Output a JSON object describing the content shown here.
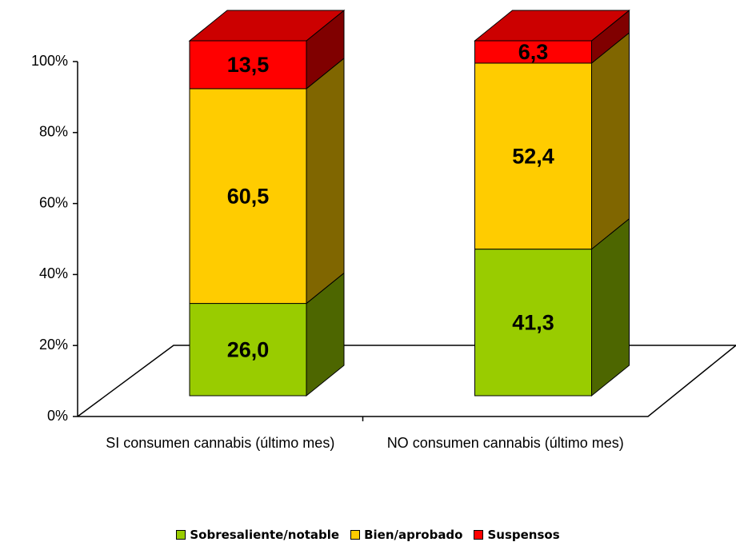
{
  "chart_data": {
    "type": "bar3d-stacked",
    "categories": [
      "SI consumen cannabis (último mes)",
      "NO consumen cannabis (último mes)"
    ],
    "series": [
      {
        "name": "Sobresaliente/notable",
        "color": "#99cc00",
        "values": [
          26.0,
          41.3
        ],
        "value_labels": [
          "26,0",
          "41,3"
        ]
      },
      {
        "name": "Bien/aprobado",
        "color": "#ffcc00",
        "values": [
          60.5,
          52.4
        ],
        "value_labels": [
          "60,5",
          "52,4"
        ]
      },
      {
        "name": "Suspensos",
        "color": "#ff0000",
        "values": [
          13.5,
          6.3
        ],
        "value_labels": [
          "13,5",
          "6,3"
        ]
      }
    ],
    "ylim": [
      0,
      100
    ],
    "yticks": [
      {
        "value": 0,
        "label": "0%"
      },
      {
        "value": 20,
        "label": "20%"
      },
      {
        "value": 40,
        "label": "40%"
      },
      {
        "value": 60,
        "label": "60%"
      },
      {
        "value": 80,
        "label": "80%"
      },
      {
        "value": 100,
        "label": "100%"
      }
    ],
    "legend": "bottom"
  }
}
